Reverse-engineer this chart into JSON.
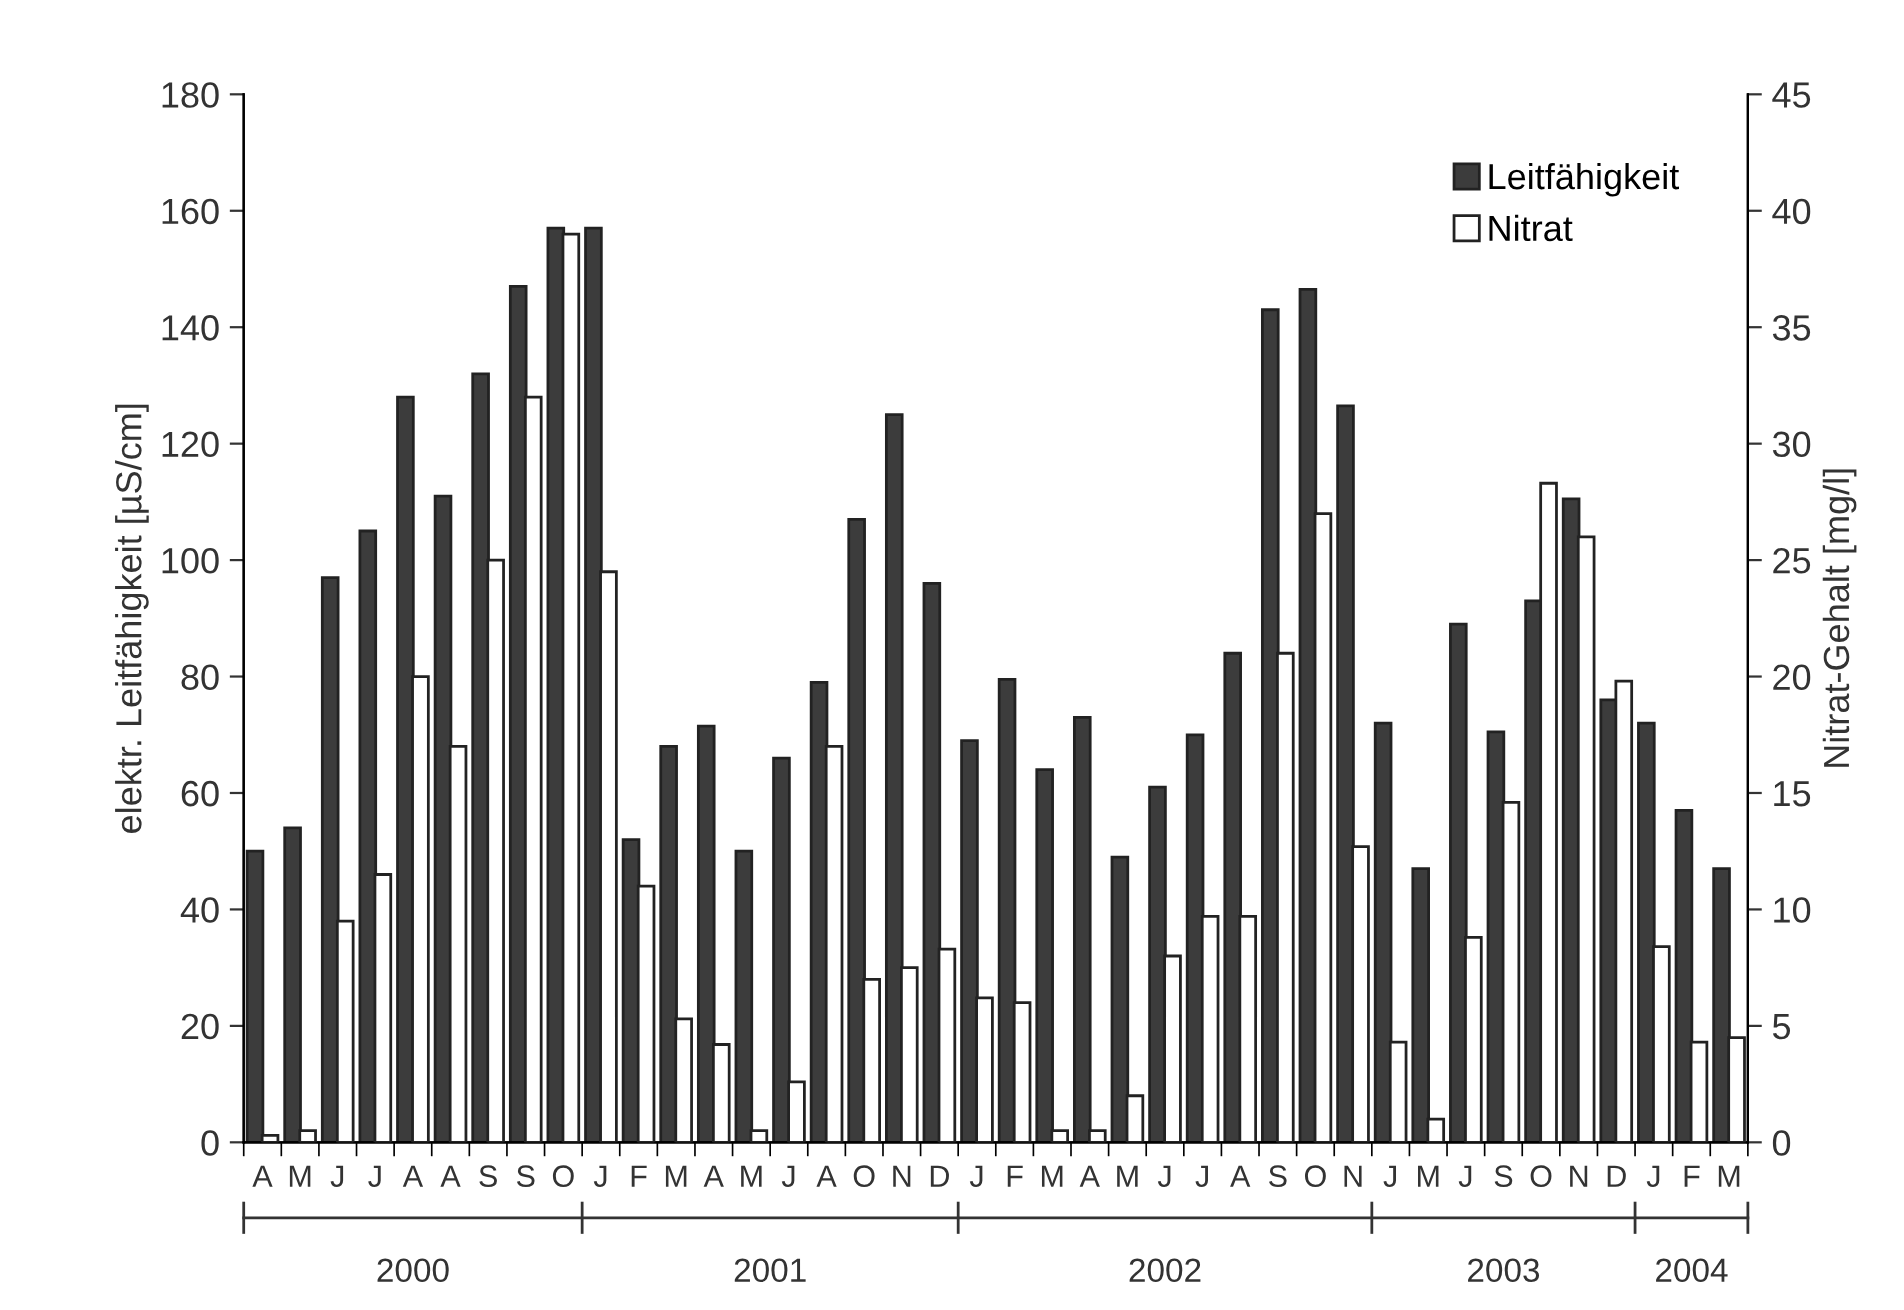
{
  "chart_data": {
    "type": "bar",
    "categories": [
      "A",
      "M",
      "J",
      "J",
      "A",
      "A",
      "S",
      "S",
      "O",
      "J",
      "F",
      "M",
      "A",
      "M",
      "J",
      "A",
      "O",
      "N",
      "D",
      "J",
      "F",
      "M",
      "A",
      "M",
      "J",
      "J",
      "A",
      "S",
      "O",
      "N",
      "J",
      "M",
      "J",
      "S",
      "O",
      "N",
      "D",
      "J",
      "F",
      "M"
    ],
    "series": [
      {
        "name": "Leitfähigkeit",
        "color": "#3c3c3c",
        "values": [
          50,
          54,
          97,
          105,
          128,
          111,
          132,
          147,
          157,
          157,
          52,
          68,
          71.5,
          50,
          66,
          79,
          107,
          125,
          96,
          69,
          79.5,
          64,
          73,
          49,
          61,
          70,
          84,
          143,
          146.5,
          126.5,
          72,
          47,
          89,
          70.5,
          93,
          110.5,
          76,
          72,
          57,
          47
        ]
      },
      {
        "name": "Nitrat",
        "color": "#ffffff",
        "axis": "y2",
        "values": [
          0.3,
          0.5,
          9.5,
          11.5,
          20,
          17,
          25,
          32,
          39,
          24.5,
          11,
          5.3,
          4.2,
          0.5,
          2.6,
          17,
          7,
          7.5,
          8.3,
          6.2,
          6,
          0.5,
          0.5,
          2,
          8,
          9.7,
          9.7,
          21,
          27,
          12.7,
          4.3,
          1,
          8.8,
          14.6,
          28.3,
          26,
          19.8,
          8.4,
          4.3,
          4.5
        ]
      }
    ],
    "ylabel": "elektr. Leitfähigkeit [µS/cm]",
    "y2label": "Nitrat-Gehalt [mg/l]",
    "ylim": [
      0,
      180
    ],
    "yticks": [
      0,
      20,
      40,
      60,
      80,
      100,
      120,
      140,
      160,
      180
    ],
    "y2lim": [
      0,
      45
    ],
    "y2ticks": [
      0,
      5,
      10,
      15,
      20,
      25,
      30,
      35,
      40,
      45
    ],
    "annotations": [
      "2000",
      "2001",
      "2002",
      "2003",
      "2004"
    ],
    "legend": "top right",
    "grid": false
  }
}
